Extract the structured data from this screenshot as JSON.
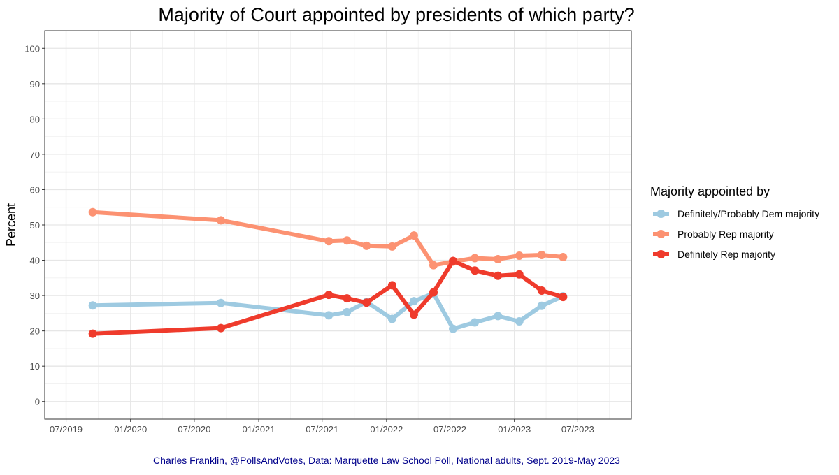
{
  "chart_data": {
    "type": "line",
    "title": "Majority of Court appointed by presidents of which party?",
    "xlabel": "",
    "ylabel": "Percent",
    "ylim": [
      -5,
      105
    ],
    "yticks": [
      0,
      10,
      20,
      30,
      40,
      50,
      60,
      70,
      80,
      90,
      100
    ],
    "xlim": [
      "2019-05-01",
      "2023-12-01"
    ],
    "xticks": [
      {
        "date": "2019-07-01",
        "label": "07/2019"
      },
      {
        "date": "2020-01-01",
        "label": "01/2020"
      },
      {
        "date": "2020-07-01",
        "label": "07/2020"
      },
      {
        "date": "2021-01-01",
        "label": "01/2021"
      },
      {
        "date": "2021-07-01",
        "label": "07/2021"
      },
      {
        "date": "2022-01-01",
        "label": "01/2022"
      },
      {
        "date": "2022-07-01",
        "label": "07/2022"
      },
      {
        "date": "2023-01-01",
        "label": "01/2023"
      },
      {
        "date": "2023-07-01",
        "label": "07/2023"
      }
    ],
    "grid": true,
    "legend": {
      "title": "Majority appointed by",
      "position": "right"
    },
    "x": [
      "2019-09-15",
      "2020-09-15",
      "2021-07-20",
      "2021-09-10",
      "2021-11-05",
      "2022-01-17",
      "2022-03-20",
      "2022-05-15",
      "2022-07-10",
      "2022-09-10",
      "2022-11-15",
      "2023-01-15",
      "2023-03-20",
      "2023-05-20"
    ],
    "series": [
      {
        "name": "Definitely/Probably Dem majority",
        "color": "#9ECAE1",
        "values": [
          27.2,
          27.9,
          24.4,
          25.3,
          28.2,
          23.4,
          28.4,
          30.6,
          20.6,
          22.4,
          24.2,
          22.7,
          27.1,
          29.8
        ]
      },
      {
        "name": "Probably Rep majority",
        "color": "#FC9272",
        "values": [
          53.6,
          51.3,
          45.4,
          45.6,
          44.1,
          43.9,
          47.0,
          38.6,
          39.6,
          40.6,
          40.3,
          41.3,
          41.5,
          40.9
        ]
      },
      {
        "name": "Definitely Rep majority",
        "color": "#EF3B2C",
        "values": [
          19.2,
          20.8,
          30.2,
          29.2,
          28.0,
          32.9,
          24.6,
          30.9,
          39.8,
          37.1,
          35.6,
          36.0,
          31.4,
          29.6
        ]
      }
    ],
    "caption": "Charles Franklin, @PollsAndVotes, Data: Marquette Law School Poll, National adults, Sept. 2019-May 2023",
    "caption_color": "#00008B"
  }
}
